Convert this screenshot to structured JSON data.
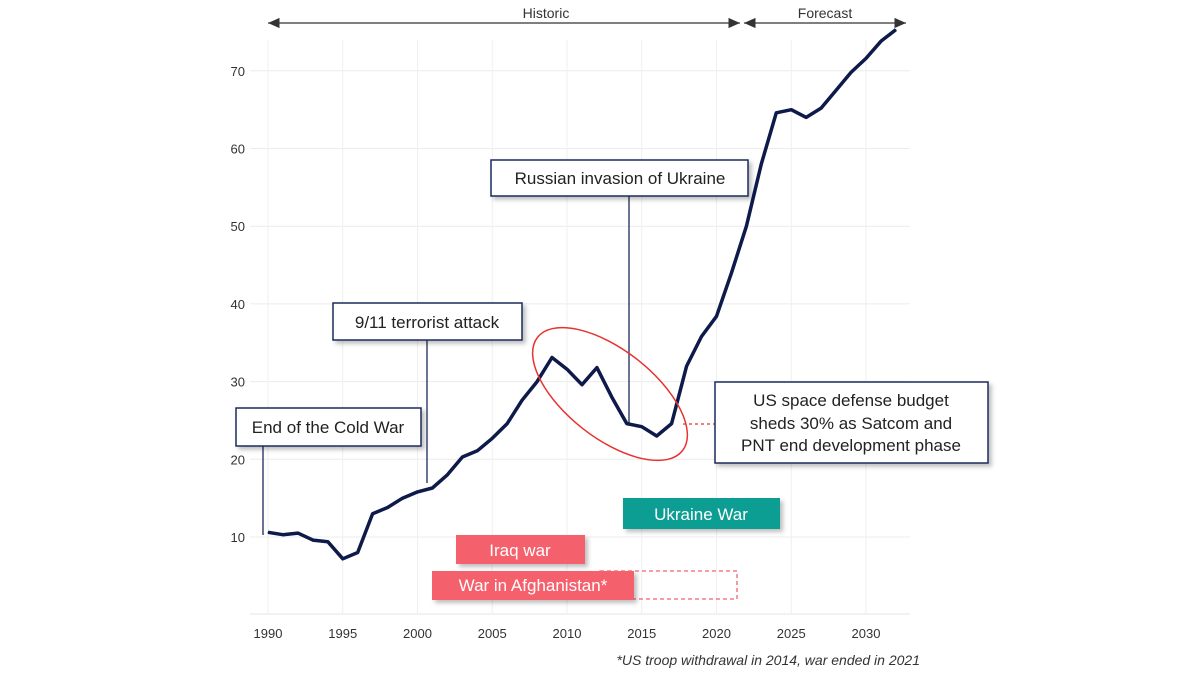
{
  "chart_data": {
    "type": "line",
    "title": "",
    "xlabel": "",
    "ylabel": "",
    "xlim": [
      1989,
      2033
    ],
    "ylim": [
      0,
      77
    ],
    "grid": true,
    "x_ticks": [
      1990,
      1995,
      2000,
      2005,
      2010,
      2015,
      2020,
      2025,
      2030
    ],
    "y_ticks": [
      10,
      20,
      30,
      40,
      50,
      60,
      70
    ],
    "series": [
      {
        "color": "#0d1a4a",
        "x": [
          1990,
          1991,
          1992,
          1993,
          1994,
          1995,
          1996,
          1997,
          1998,
          1999,
          2000,
          2001,
          2002,
          2003,
          2004,
          2005,
          2006,
          2007,
          2008,
          2009,
          2010,
          2011,
          2012,
          2013,
          2014,
          2015,
          2016,
          2017,
          2018,
          2019,
          2020,
          2021,
          2022,
          2023,
          2024,
          2025,
          2026,
          2027,
          2028,
          2029,
          2030,
          2031,
          2032
        ],
        "y": [
          10.6,
          10.3,
          10.5,
          9.6,
          9.4,
          7.2,
          8.0,
          13.0,
          13.8,
          15.0,
          15.8,
          16.3,
          18.0,
          20.3,
          21.1,
          22.7,
          24.6,
          27.6,
          30.0,
          33.1,
          31.6,
          29.6,
          31.8,
          28.0,
          24.6,
          24.2,
          23.0,
          24.6,
          32.0,
          35.8,
          38.4,
          44.0,
          50.0,
          58.0,
          64.6,
          65.0,
          64.0,
          65.2,
          67.5,
          69.8,
          71.6,
          73.8,
          75.3
        ]
      }
    ],
    "periods": [
      {
        "label": "Historic",
        "from": 1990,
        "to": 2022
      },
      {
        "label": "Forecast",
        "from": 2022,
        "to": 2033
      }
    ],
    "annotations": [
      {
        "text": "End of the Cold War",
        "x": 1989.7
      },
      {
        "text": "9/11 terrorist attack",
        "x": 2001
      },
      {
        "text": "Russian invasion of Ukraine",
        "x": 2014
      },
      {
        "lines": [
          "US space defense budget",
          "sheds 30% as Satcom and",
          "PNT end development phase"
        ]
      }
    ],
    "events": [
      {
        "label": "Iraq war",
        "from": 2002.5,
        "to": 2011,
        "color": "#f4606c"
      },
      {
        "label": "War in Afghanistan*",
        "from": 2001,
        "to": 2014.5,
        "dashed_to": 2021.3,
        "color": "#f4606c"
      },
      {
        "label": "Ukraine War",
        "from": 2013.7,
        "to": 2024.2,
        "color": "#0e9e93"
      }
    ],
    "footnote": "*US troop withdrawal in 2014, war ended in 2021",
    "highlight_color": "#e8322f"
  }
}
